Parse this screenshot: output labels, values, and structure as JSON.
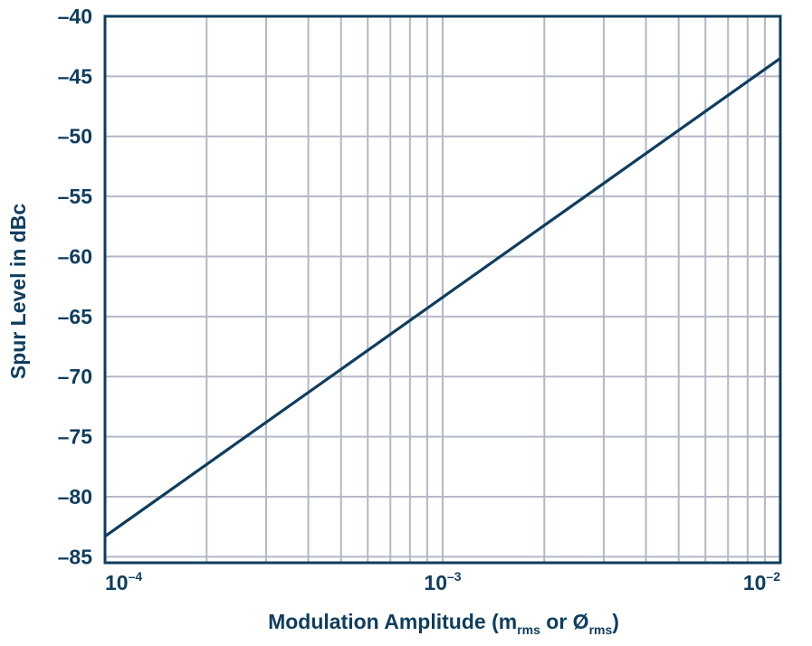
{
  "colors": {
    "axis": "#0f3d5e",
    "grid": "#b4b8c6",
    "line": "#0f3d5e",
    "text": "#0f3d5e"
  },
  "chart_data": {
    "type": "line",
    "title": "",
    "xlabel": {
      "main": "Modulation Amplitude (m",
      "sub1": "rms",
      "mid": " or Ø",
      "sub2": "rms",
      "end": ")"
    },
    "ylabel": "Spur Level in dBc",
    "x_scale": "log",
    "xlim": [
      0.0001,
      0.01
    ],
    "ylim": [
      -85.5,
      -40
    ],
    "x_ticks": [
      {
        "value": 0.0001,
        "base": "10",
        "exp": "–4"
      },
      {
        "value": 0.001,
        "base": "10",
        "exp": "–3"
      },
      {
        "value": 0.01,
        "base": "10",
        "exp": "–2"
      }
    ],
    "y_ticks": [
      {
        "value": -40,
        "label": "–40"
      },
      {
        "value": -45,
        "label": "–45"
      },
      {
        "value": -50,
        "label": "–50"
      },
      {
        "value": -55,
        "label": "–55"
      },
      {
        "value": -60,
        "label": "–60"
      },
      {
        "value": -65,
        "label": "–65"
      },
      {
        "value": -70,
        "label": "–70"
      },
      {
        "value": -75,
        "label": "–75"
      },
      {
        "value": -80,
        "label": "–80"
      },
      {
        "value": -85,
        "label": "–85"
      }
    ],
    "grid": true,
    "series": [
      {
        "x": [
          0.0001,
          0.01
        ],
        "y": [
          -83.3,
          -43.5
        ]
      }
    ]
  }
}
